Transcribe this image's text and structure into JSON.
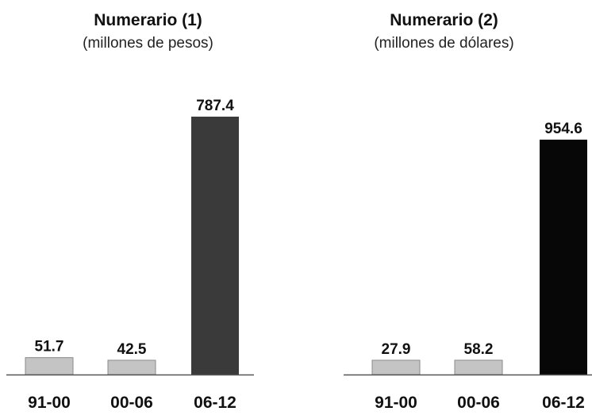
{
  "chart_data": [
    {
      "type": "bar",
      "title": "Numerario (1)",
      "subtitle": "(millones de pesos)",
      "categories": [
        "91-00",
        "00-06",
        "06-12"
      ],
      "values": [
        51.7,
        42.5,
        787.4
      ],
      "value_labels": [
        "51.7",
        "42.5",
        "787.4"
      ],
      "xlabel": "",
      "ylabel": "",
      "grid": false,
      "bar_colors": [
        "#c4c4c4",
        "#c4c4c4",
        "#3a3a3a"
      ]
    },
    {
      "type": "bar",
      "title": "Numerario (2)",
      "subtitle": "(millones de dólares)",
      "categories": [
        "91-00",
        "00-06",
        "06-12"
      ],
      "values": [
        27.9,
        58.2,
        954.6
      ],
      "value_labels": [
        "27.9",
        "58.2",
        "954.6"
      ],
      "xlabel": "",
      "ylabel": "",
      "grid": false,
      "bar_colors": [
        "#c4c4c4",
        "#c4c4c4",
        "#070707"
      ]
    }
  ]
}
